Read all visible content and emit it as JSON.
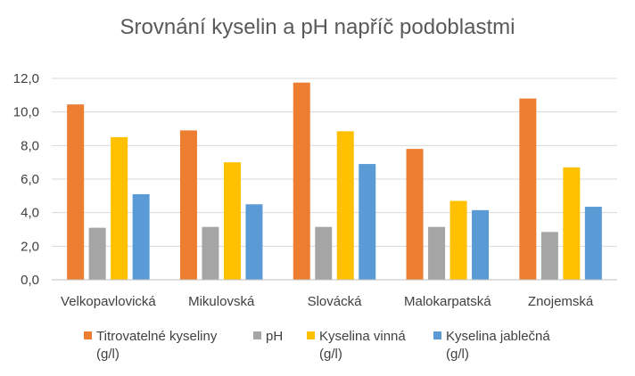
{
  "chart_data": {
    "type": "bar",
    "title": "Srovnání kyselin a pH napříč podoblastmi",
    "xlabel": "",
    "ylabel": "",
    "ylim": [
      0,
      12
    ],
    "ytick_step": 2,
    "ytick_labels": [
      "0,0",
      "2,0",
      "4,0",
      "6,0",
      "8,0",
      "10,0",
      "12,0"
    ],
    "grid": true,
    "legend_position": "bottom",
    "categories": [
      "Velkopavlovická",
      "Mikulovská",
      "Slovácká",
      "Malokarpatská",
      "Znojemská"
    ],
    "series": [
      {
        "name": "Titrovatelné kyseliny (g/l)",
        "legend_lines": [
          "Titrovatelné kyseliny",
          "(g/l)"
        ],
        "color": "#ED7D31",
        "values": [
          10.45,
          8.9,
          11.75,
          7.8,
          10.8
        ]
      },
      {
        "name": "pH",
        "legend_lines": [
          "pH"
        ],
        "color": "#A5A5A5",
        "values": [
          3.1,
          3.15,
          3.15,
          3.15,
          2.85
        ]
      },
      {
        "name": "Kyselina vinná (g/l)",
        "legend_lines": [
          "Kyselina vinná",
          "(g/l)"
        ],
        "color": "#FFC000",
        "values": [
          8.5,
          7.0,
          8.85,
          4.7,
          6.7
        ]
      },
      {
        "name": "Kyselina jablečná (g/l)",
        "legend_lines": [
          "Kyselina jablečná",
          "(g/l)"
        ],
        "color": "#5B9BD5",
        "values": [
          5.1,
          4.5,
          6.9,
          4.15,
          4.35
        ]
      }
    ]
  }
}
